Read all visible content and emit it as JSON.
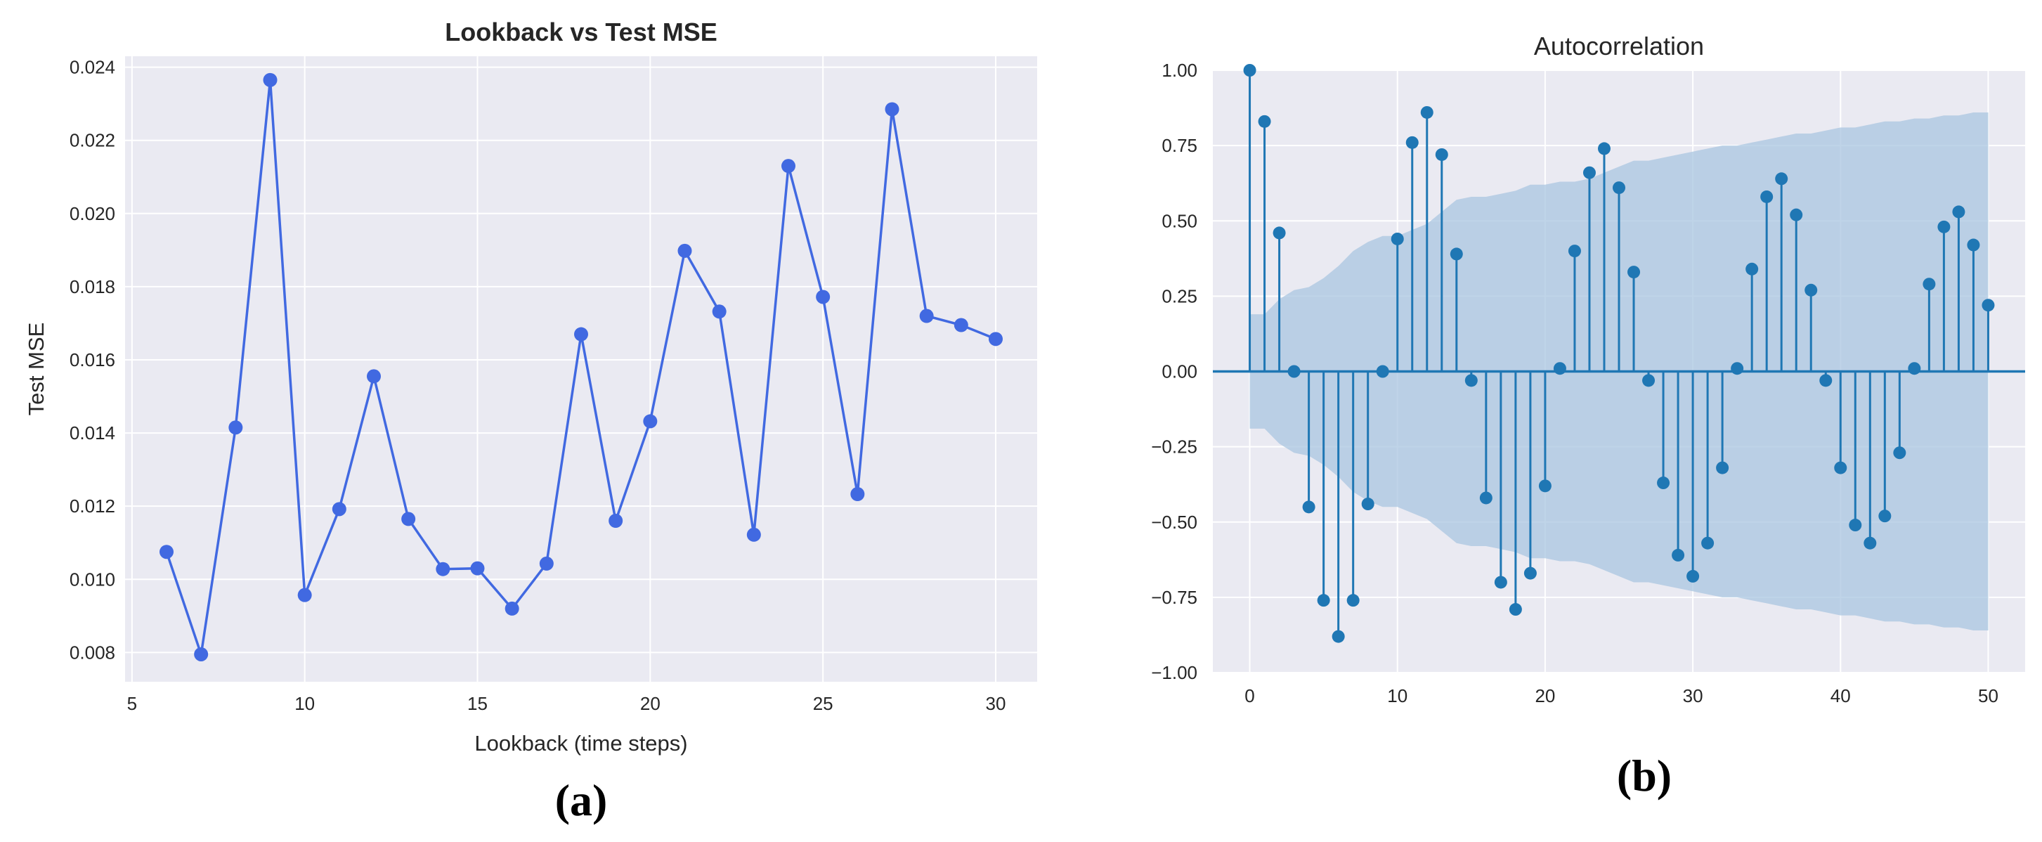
{
  "chart_data": [
    {
      "panel_label": "(a)",
      "type": "line",
      "title": "Lookback vs Test MSE",
      "xlabel": "Lookback (time steps)",
      "ylabel": "Test MSE",
      "xlim": [
        4.8,
        31.2
      ],
      "ylim": [
        0.0072,
        0.0243
      ],
      "xticks": [
        5,
        10,
        15,
        20,
        25,
        30
      ],
      "yticks": [
        0.008,
        0.01,
        0.012,
        0.014,
        0.016,
        0.018,
        0.02,
        0.022,
        0.024
      ],
      "ytick_labels": [
        "0.008",
        "0.010",
        "0.012",
        "0.014",
        "0.016",
        "0.018",
        "0.020",
        "0.022",
        "0.024"
      ],
      "grid": true,
      "color": "#4169e1",
      "series": [
        {
          "name": "Test MSE",
          "x": [
            6,
            7,
            8,
            9,
            10,
            11,
            12,
            13,
            14,
            15,
            16,
            17,
            18,
            19,
            20,
            21,
            22,
            23,
            24,
            25,
            26,
            27,
            28,
            29,
            30
          ],
          "values": [
            0.01075,
            0.00795,
            0.01415,
            0.02365,
            0.00957,
            0.01192,
            0.01555,
            0.01165,
            0.01028,
            0.0103,
            0.0092,
            0.01043,
            0.0167,
            0.0116,
            0.01432,
            0.01898,
            0.01732,
            0.01122,
            0.0213,
            0.01772,
            0.01233,
            0.02285,
            0.0172,
            0.01695,
            0.01657
          ]
        }
      ]
    },
    {
      "panel_label": "(b)",
      "type": "stem",
      "title": "Autocorrelation",
      "xlabel": "",
      "ylabel": "",
      "xlim": [
        -2.5,
        52.5
      ],
      "ylim": [
        -1.0,
        1.0
      ],
      "xticks": [
        0,
        10,
        20,
        30,
        40,
        50
      ],
      "yticks": [
        -1.0,
        -0.75,
        -0.5,
        -0.25,
        0.0,
        0.25,
        0.5,
        0.75,
        1.0
      ],
      "ytick_labels": [
        "−1.00",
        "−0.75",
        "−0.50",
        "−0.25",
        "0.00",
        "0.25",
        "0.50",
        "0.75",
        "1.00"
      ],
      "grid": true,
      "color": "#1f77b4",
      "confidence_band_color": "#a9c6e0",
      "lags": [
        0,
        1,
        2,
        3,
        4,
        5,
        6,
        7,
        8,
        9,
        10,
        11,
        12,
        13,
        14,
        15,
        16,
        17,
        18,
        19,
        20,
        21,
        22,
        23,
        24,
        25,
        26,
        27,
        28,
        29,
        30,
        31,
        32,
        33,
        34,
        35,
        36,
        37,
        38,
        39,
        40,
        41,
        42,
        43,
        44,
        45,
        46,
        47,
        48,
        49,
        50
      ],
      "values": [
        1.0,
        0.83,
        0.46,
        0.0,
        -0.45,
        -0.76,
        -0.88,
        -0.76,
        -0.44,
        0.0,
        0.44,
        0.76,
        0.86,
        0.72,
        0.39,
        -0.03,
        -0.42,
        -0.7,
        -0.79,
        -0.67,
        -0.38,
        0.01,
        0.4,
        0.66,
        0.74,
        0.61,
        0.33,
        -0.03,
        -0.37,
        -0.61,
        -0.68,
        -0.57,
        -0.32,
        0.01,
        0.34,
        0.58,
        0.64,
        0.52,
        0.27,
        -0.03,
        -0.32,
        -0.51,
        -0.57,
        -0.48,
        -0.27,
        0.01,
        0.29,
        0.48,
        0.53,
        0.42,
        0.22
      ],
      "confidence_upper": [
        0.19,
        0.19,
        0.24,
        0.27,
        0.28,
        0.31,
        0.35,
        0.4,
        0.43,
        0.45,
        0.45,
        0.47,
        0.49,
        0.53,
        0.57,
        0.58,
        0.58,
        0.59,
        0.6,
        0.62,
        0.62,
        0.63,
        0.63,
        0.64,
        0.66,
        0.68,
        0.7,
        0.7,
        0.71,
        0.72,
        0.73,
        0.74,
        0.75,
        0.75,
        0.76,
        0.77,
        0.78,
        0.79,
        0.79,
        0.8,
        0.81,
        0.81,
        0.82,
        0.83,
        0.83,
        0.84,
        0.84,
        0.85,
        0.85,
        0.86,
        0.86
      ]
    }
  ]
}
